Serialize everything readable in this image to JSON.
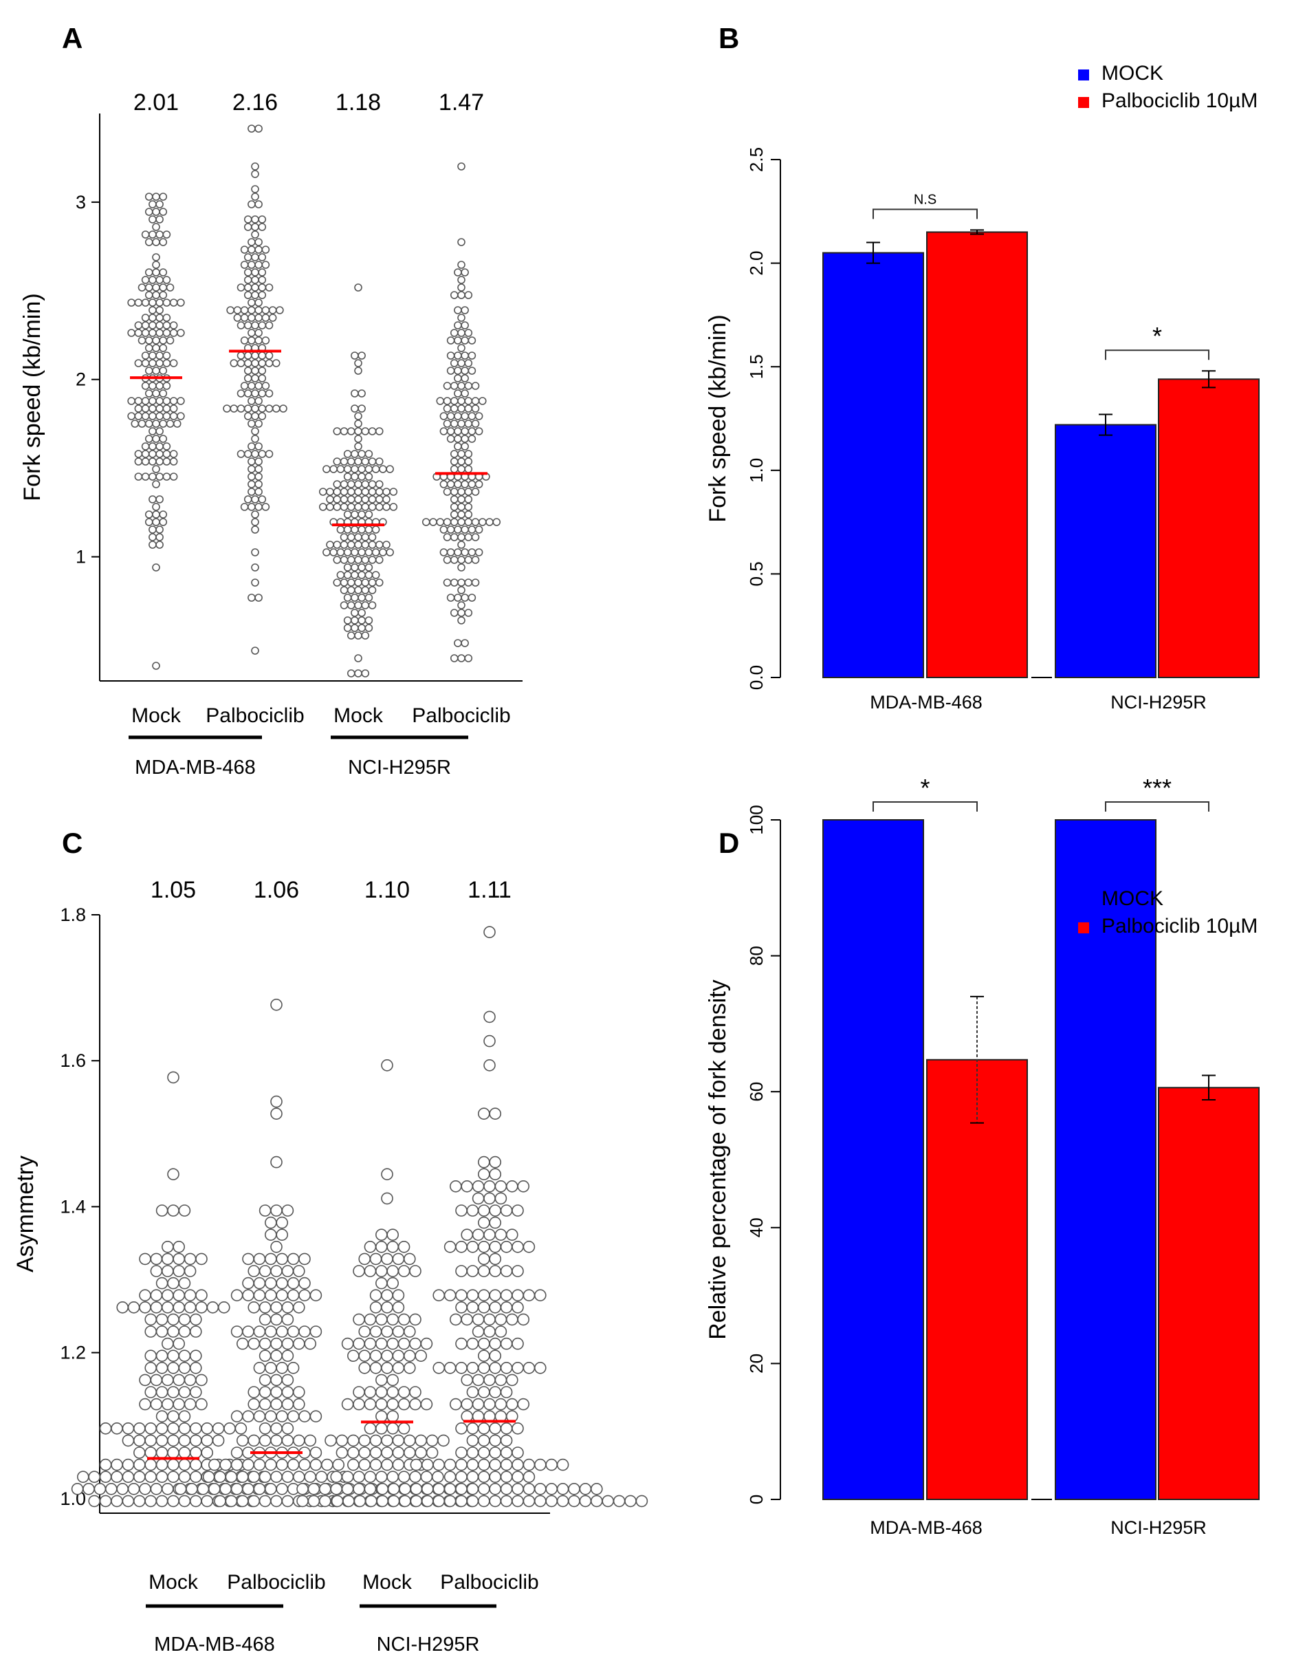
{
  "figure": {
    "panels": [
      "A",
      "B",
      "C",
      "D"
    ]
  },
  "colors": {
    "mock": "#0000FF",
    "palbo": "#FF0000",
    "median": "#FF0000",
    "point_stroke": "#555555"
  },
  "chart_data": [
    {
      "panel": "A",
      "type": "scatter",
      "subtype": "beeswarm",
      "ylabel": "Fork speed (kb/min)",
      "ylim": [
        0.3,
        3.5
      ],
      "yticks": [
        "1",
        "2",
        "3"
      ],
      "group_labels": [
        "Mock",
        "Palbociclib",
        "Mock",
        "Palbociclib"
      ],
      "cell_lines": [
        "MDA-MB-468",
        "NCI-H295R"
      ],
      "medians_labels": [
        "2.01",
        "2.16",
        "1.18",
        "1.47"
      ],
      "medians": [
        2.01,
        2.16,
        1.18,
        1.47
      ],
      "groups": [
        {
          "name": "Mock MDA-MB-468",
          "min": 0.38,
          "max": 3.02,
          "median": 2.01,
          "n": 170
        },
        {
          "name": "Palbociclib MDA-MB-468",
          "min": 0.45,
          "max": 3.42,
          "median": 2.16,
          "n": 150
        },
        {
          "name": "Mock NCI-H295R",
          "min": 0.35,
          "max": 2.53,
          "median": 1.18,
          "n": 180
        },
        {
          "name": "Palbociclib NCI-H295R",
          "min": 0.42,
          "max": 3.2,
          "median": 1.47,
          "n": 170
        }
      ]
    },
    {
      "panel": "B",
      "type": "bar",
      "ylabel": "Fork speed (kb/min)",
      "ylim": [
        0,
        2.5
      ],
      "yticks": [
        "0.0",
        "0.5",
        "1.0",
        "1.5",
        "2.0",
        "2.5"
      ],
      "categories": [
        "MDA-MB-468",
        "NCI-H295R"
      ],
      "series": [
        {
          "name": "MOCK",
          "values": [
            2.05,
            1.22
          ],
          "errors": [
            0.05,
            0.05
          ]
        },
        {
          "name": "Palbociclib 10µM",
          "values": [
            2.15,
            1.44
          ],
          "errors": [
            0.01,
            0.04
          ]
        }
      ],
      "significance": [
        "N.S",
        "*"
      ],
      "legend": [
        "MOCK",
        "Palbociclib 10µM"
      ]
    },
    {
      "panel": "C",
      "type": "scatter",
      "subtype": "beeswarm",
      "ylabel": "Asymmetry",
      "ylim": [
        0.98,
        1.8
      ],
      "yticks": [
        "1.0",
        "1.2",
        "1.4",
        "1.6",
        "1.8"
      ],
      "group_labels": [
        "Mock",
        "Palbociclib",
        "Mock",
        "Palbociclib"
      ],
      "cell_lines": [
        "MDA-MB-468",
        "NCI-H295R"
      ],
      "medians_labels": [
        "1.05",
        "1.06",
        "1.10",
        "1.11"
      ],
      "medians": [
        1.055,
        1.063,
        1.105,
        1.106
      ],
      "groups": [
        {
          "name": "Mock MDA-MB-468",
          "min": 1.0,
          "max": 1.58,
          "median": 1.055,
          "n": 170
        },
        {
          "name": "Palbociclib MDA-MB-468",
          "min": 1.0,
          "max": 1.67,
          "median": 1.063,
          "n": 160
        },
        {
          "name": "Mock NCI-H295R",
          "min": 1.0,
          "max": 1.59,
          "median": 1.105,
          "n": 150
        },
        {
          "name": "Palbociclib NCI-H295R",
          "min": 1.0,
          "max": 1.77,
          "median": 1.106,
          "n": 200
        }
      ]
    },
    {
      "panel": "D",
      "type": "bar",
      "ylabel": "Relative percentage of fork density",
      "ylim": [
        0,
        100
      ],
      "yticks": [
        "0",
        "20",
        "40",
        "60",
        "80",
        "100"
      ],
      "categories": [
        "MDA-MB-468",
        "NCI-H295R"
      ],
      "series": [
        {
          "name": "MOCK",
          "values": [
            100,
            100
          ],
          "errors": [
            0,
            0
          ]
        },
        {
          "name": "Palbociclib 10µM",
          "values": [
            64.7,
            60.6
          ],
          "errors": [
            9.3,
            1.8
          ]
        }
      ],
      "significance": [
        "*",
        "***"
      ],
      "legend": [
        "MOCK",
        "Palbociclib 10µM"
      ]
    }
  ]
}
